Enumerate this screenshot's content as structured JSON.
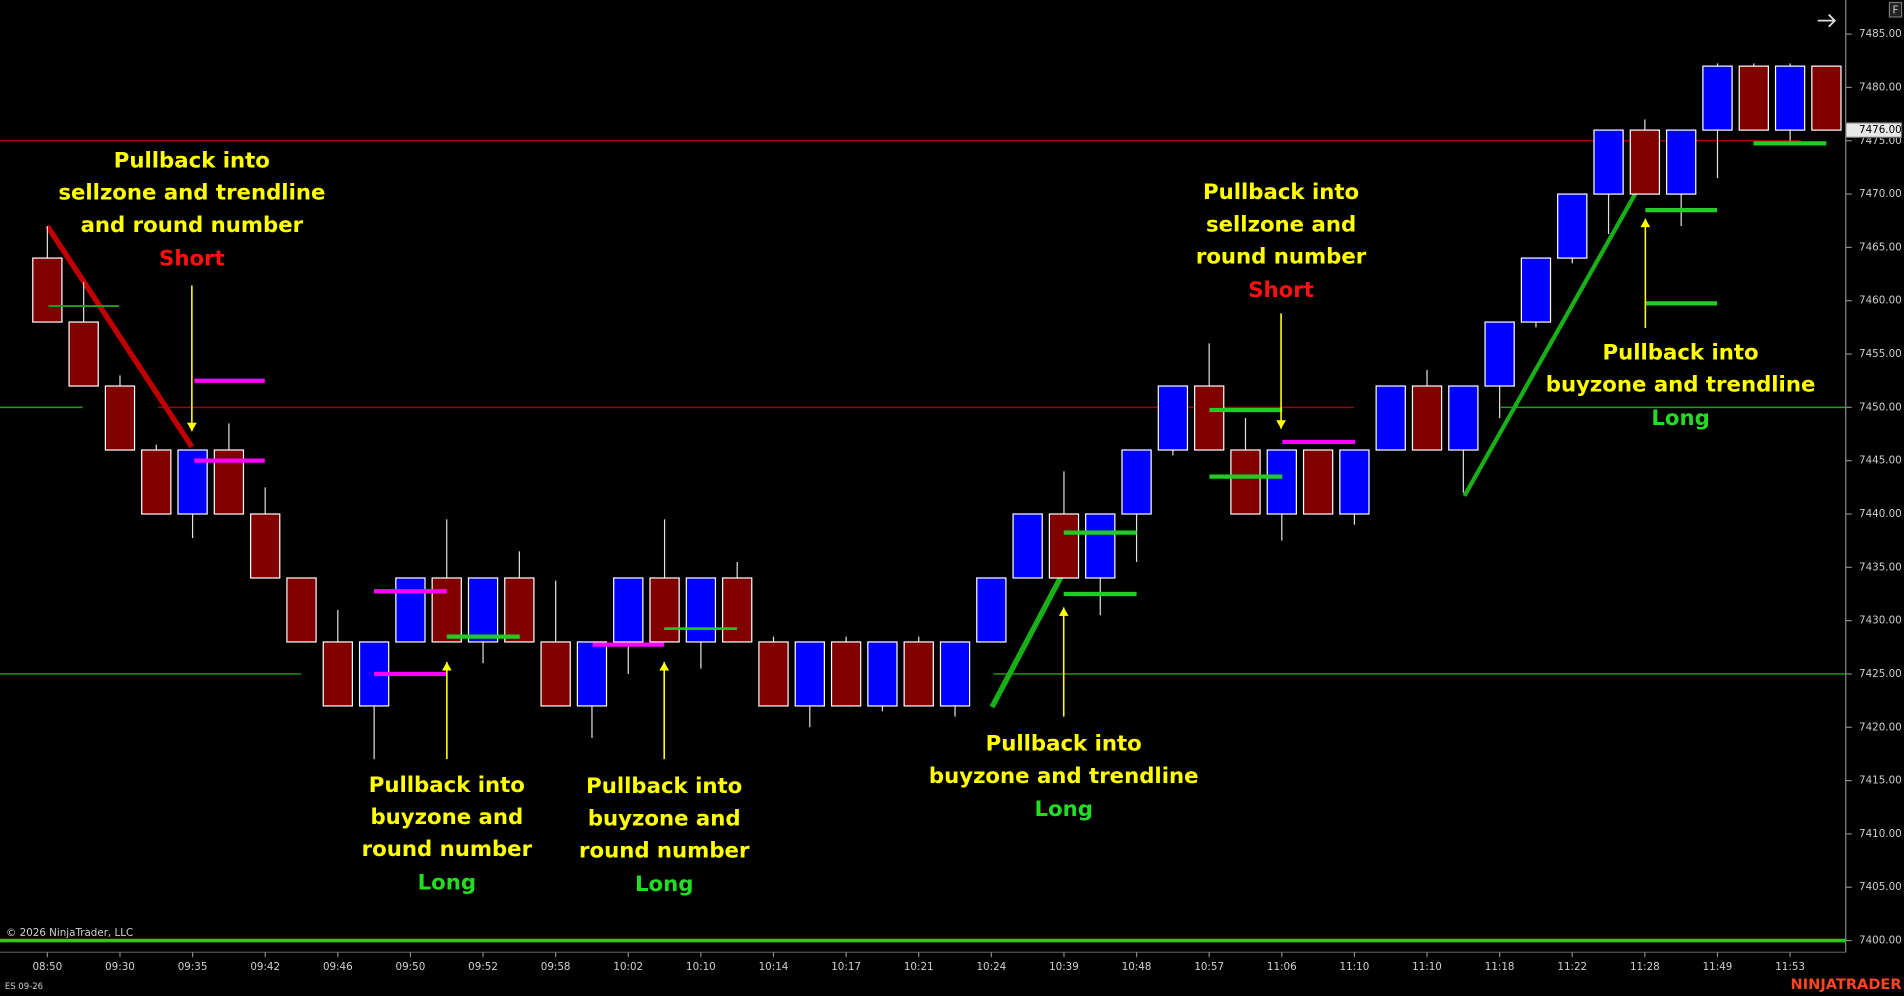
{
  "chart_data": {
    "type": "candlestick",
    "categories": [
      "08:50",
      null,
      "09:30",
      null,
      "09:35",
      null,
      "09:42",
      null,
      "09:46",
      null,
      "09:50",
      null,
      "09:52",
      null,
      "09:58",
      null,
      "10:02",
      null,
      "10:10",
      null,
      "10:14",
      null,
      "10:17",
      null,
      "10:21",
      null,
      "10:24",
      null,
      "10:39",
      null,
      "10:48",
      null,
      "10:57",
      null,
      "11:06",
      null,
      "11:10",
      null,
      "11:10",
      null,
      "11:18",
      null,
      "11:22",
      null,
      "11:28",
      null,
      "11:49",
      null,
      "11:53",
      null
    ],
    "open": [
      7464,
      7458,
      7452,
      7446,
      7440,
      7446,
      7440,
      7434,
      7428,
      7422,
      7428,
      7434,
      7428,
      7434,
      7428,
      7422,
      7428,
      7434,
      7428,
      7434,
      7428,
      7422,
      7428,
      7422,
      7428,
      7422,
      7428,
      7434,
      7440,
      7434,
      7440,
      7446,
      7452,
      7446,
      7440,
      7446,
      7440,
      7446,
      7452,
      7446,
      7452,
      7458,
      7464,
      7470,
      7476,
      7470,
      7476,
      7482,
      7476,
      7482
    ],
    "close": [
      7458,
      7452,
      7446,
      7440,
      7446,
      7440,
      7434,
      7428,
      7422,
      7428,
      7434,
      7428,
      7434,
      7428,
      7422,
      7428,
      7434,
      7428,
      7434,
      7428,
      7422,
      7428,
      7422,
      7428,
      7422,
      7428,
      7434,
      7440,
      7434,
      7440,
      7446,
      7452,
      7446,
      7440,
      7446,
      7440,
      7446,
      7452,
      7446,
      7452,
      7458,
      7464,
      7470,
      7476,
      7470,
      7476,
      7482,
      7476,
      7482,
      7476
    ],
    "high": [
      7467,
      7461.75,
      7453,
      7446.5,
      7446,
      7448.5,
      7442.5,
      7434,
      7431,
      7428,
      7434,
      7439.5,
      7434,
      7436.5,
      7433.75,
      7428,
      7434,
      7439.5,
      7434,
      7435.5,
      7428.5,
      7428,
      7428.5,
      7428,
      7428.5,
      7428,
      7434,
      7440,
      7444,
      7440,
      7446,
      7452,
      7456,
      7449,
      7446,
      7446,
      7446,
      7452,
      7453.5,
      7452,
      7458,
      7464,
      7470,
      7476,
      7477,
      7476,
      7482.25,
      7482.25,
      7482.25,
      7482
    ],
    "low": [
      7458,
      7452,
      7446,
      7440,
      7437.75,
      7440,
      7434,
      7428,
      7422,
      7417,
      7428,
      7428,
      7426,
      7428,
      7422,
      7419,
      7425,
      7428,
      7425.5,
      7428,
      7422,
      7420,
      7422,
      7421.5,
      7422,
      7421,
      7428,
      7434,
      7434,
      7430.5,
      7435.5,
      7445.5,
      7446,
      7440,
      7437.5,
      7440,
      7439,
      7446,
      7446,
      7442,
      7449,
      7457.5,
      7463.5,
      7466.25,
      7470,
      7467,
      7471.5,
      7476,
      7475,
      7476
    ],
    "up_color": "#0000ff",
    "down_color": "#800000",
    "ylim": [
      7398.9,
      7488.2
    ],
    "yticks": [
      {
        "value": 7400,
        "label": "7400.00"
      },
      {
        "value": 7405,
        "label": "7405.00"
      },
      {
        "value": 7410,
        "label": "7410.00"
      },
      {
        "value": 7415,
        "label": "7415.00"
      },
      {
        "value": 7420,
        "label": "7420.00"
      },
      {
        "value": 7425,
        "label": "7425.00"
      },
      {
        "value": 7430,
        "label": "7430.00"
      },
      {
        "value": 7435,
        "label": "7435.00"
      },
      {
        "value": 7440,
        "label": "7440.00"
      },
      {
        "value": 7445,
        "label": "7445.00"
      },
      {
        "value": 7450,
        "label": "7450.00"
      },
      {
        "value": 7455,
        "label": "7455.00"
      },
      {
        "value": 7460,
        "label": "7460.00"
      },
      {
        "value": 7465,
        "label": "7465.00"
      },
      {
        "value": 7470,
        "label": "7470.00"
      },
      {
        "value": 7475,
        "label": "7475.00"
      },
      {
        "value": 7480,
        "label": "7480.00"
      },
      {
        "value": 7485,
        "label": "7485.00"
      }
    ],
    "current_price": {
      "value": 7476,
      "label": "7476.00"
    },
    "levels": [
      {
        "value": 7475,
        "color": "#a00000"
      },
      {
        "value": 7450,
        "color": "#a00000"
      },
      {
        "value": 7425,
        "color": "#1fa01f"
      },
      {
        "value": 7425,
        "color": "#1fa01f"
      },
      {
        "value": 7450,
        "color": "#1fa01f"
      },
      {
        "value": 7450,
        "color": "#1fa01f"
      },
      {
        "value": 7400,
        "color": "#22cc22"
      }
    ],
    "zones": [
      {
        "value": 7459.5,
        "color": "#1fa01f"
      },
      {
        "value": 7452.5,
        "color": "#ff00ff"
      },
      {
        "value": 7445,
        "color": "#ff00ff"
      },
      {
        "value": 7432.75,
        "color": "#ff00ff"
      },
      {
        "value": 7425,
        "color": "#ff00ff"
      },
      {
        "value": 7428.5,
        "color": "#22cc22"
      },
      {
        "value": 7427.75,
        "color": "#ff00ff"
      },
      {
        "value": 7429.25,
        "color": "#22cc22"
      },
      {
        "value": 7438.25,
        "color": "#22cc22"
      },
      {
        "value": 7432.5,
        "color": "#22cc22"
      },
      {
        "value": 7449.75,
        "color": "#22cc22"
      },
      {
        "value": 7443.5,
        "color": "#22cc22"
      },
      {
        "value": 7446.75,
        "color": "#ff00ff"
      },
      {
        "value": 7468.5,
        "color": "#22cc22"
      },
      {
        "value": 7459.75,
        "color": "#22cc22"
      },
      {
        "value": 7474.75,
        "color": "#22cc22"
      }
    ],
    "trendlines": [
      {
        "from": 7467,
        "to": 7446.3,
        "color": "#c00000"
      },
      {
        "from": 7421.9,
        "to": 7434.6,
        "color": "#18b018"
      },
      {
        "from": 7441.7,
        "to": 7471.7,
        "color": "#18b018"
      }
    ],
    "annotations": [
      {
        "lines": [
          "Pullback into",
          "sellzone and trendline",
          "and round number"
        ],
        "signal": "Short",
        "signal_color": "#ff1010"
      },
      {
        "lines": [
          "Pullback into",
          "buyzone and",
          "round number"
        ],
        "signal": "Long",
        "signal_color": "#22dd22"
      },
      {
        "lines": [
          "Pullback into",
          "buyzone and",
          "round number"
        ],
        "signal": "Long",
        "signal_color": "#22dd22"
      },
      {
        "lines": [
          "Pullback into",
          "buyzone and trendline"
        ],
        "signal": "Long",
        "signal_color": "#22dd22"
      },
      {
        "lines": [
          "Pullback into",
          "sellzone and",
          "round number"
        ],
        "signal": "Short",
        "signal_color": "#ff1010"
      },
      {
        "lines": [
          "Pullback into",
          "buyzone and trendline"
        ],
        "signal": "Long",
        "signal_color": "#22dd22"
      }
    ],
    "copyright": "© 2026 NinjaTrader, LLC",
    "instrument": "ES 09-26",
    "brand": "NINJATRADER",
    "panel_label": "F"
  }
}
